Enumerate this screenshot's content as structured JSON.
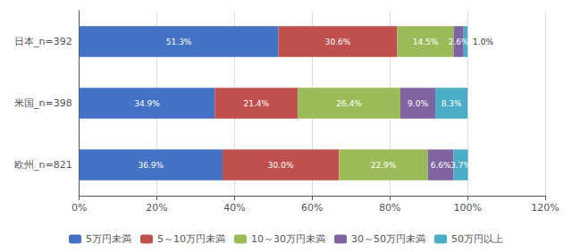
{
  "chart_data": {
    "type": "bar",
    "orientation": "horizontal",
    "stacked": true,
    "categories": [
      "欧州_n=821",
      "米国_n=398",
      "日本_n=392"
    ],
    "series": [
      {
        "name": "5万円未満",
        "values": [
          36.9,
          34.9,
          51.3
        ],
        "value_labels": [
          "36.9%",
          "34.9%",
          "51.3%"
        ],
        "color": "#4472C4"
      },
      {
        "name": "5～10万円未満",
        "values": [
          30.0,
          21.4,
          30.6
        ],
        "value_labels": [
          "30.0%",
          "21.4%",
          "30.6%"
        ],
        "color": "#C0504D"
      },
      {
        "name": "10～30万円未満",
        "values": [
          22.9,
          26.4,
          14.5
        ],
        "value_labels": [
          "22.9%",
          "26.4%",
          "14.5%"
        ],
        "color": "#9BBB59"
      },
      {
        "name": "30～50万円未満",
        "values": [
          6.6,
          9.0,
          2.6
        ],
        "value_labels": [
          "6.6%",
          "9.0%",
          "2.6%"
        ],
        "color": "#8064A2"
      },
      {
        "name": "50万円以上",
        "values": [
          3.7,
          8.3,
          1.0
        ],
        "value_labels": [
          "3.7%",
          "8.3%",
          null
        ],
        "color": "#4BACC6"
      }
    ],
    "annotations": [
      {
        "text": "1.0%",
        "category": "日本_n=392"
      }
    ],
    "data_labels": true,
    "xlim": [
      0,
      120
    ],
    "xticks": [
      {
        "value": 0,
        "label": "0%"
      },
      {
        "value": 20,
        "label": "20%"
      },
      {
        "value": 40,
        "label": "40%"
      },
      {
        "value": 60,
        "label": "60%"
      },
      {
        "value": 80,
        "label": "80%"
      },
      {
        "value": 100,
        "label": "100%"
      },
      {
        "value": 120,
        "label": "120%"
      }
    ],
    "grid": true,
    "legend": "bottom"
  }
}
